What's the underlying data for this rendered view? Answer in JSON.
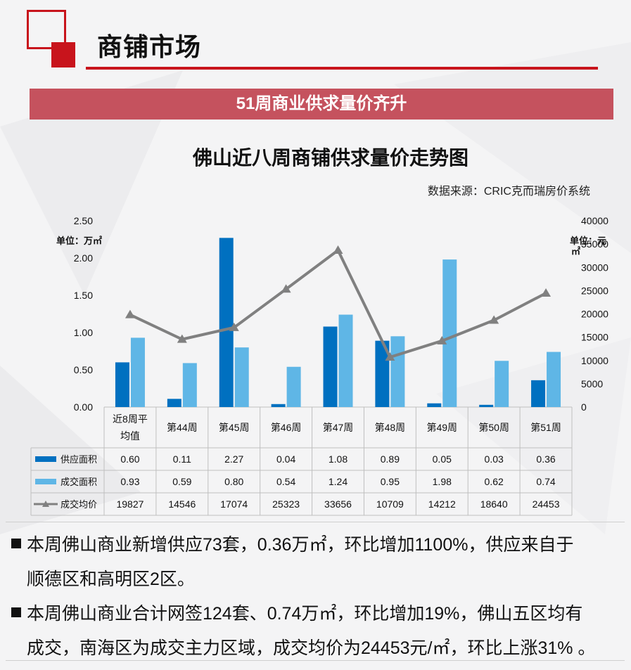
{
  "header": {
    "title": "商铺市场"
  },
  "banner": {
    "text": "51周商业供求量价齐升"
  },
  "source": "数据来源：CRIC克而瑞房价系统",
  "units": {
    "left": "单位：万㎡",
    "right_line1": "单位：元",
    "right_line2": "㎡"
  },
  "colors": {
    "accent": "#c8141c",
    "banner": "#c5525e",
    "supply": "#0070c0",
    "deal": "#5fb6e6",
    "price": "#808080"
  },
  "chart_data": {
    "type": "bar",
    "title": "佛山近八周商铺供求量价走势图",
    "categories": [
      "近8周平均值",
      "第44周",
      "第45周",
      "第46周",
      "第47周",
      "第48周",
      "第49周",
      "第50周",
      "第51周"
    ],
    "category_lines": [
      [
        "近8周平",
        "均值"
      ],
      [
        "第44周"
      ],
      [
        "第45周"
      ],
      [
        "第46周"
      ],
      [
        "第47周"
      ],
      [
        "第48周"
      ],
      [
        "第49周"
      ],
      [
        "第50周"
      ],
      [
        "第51周"
      ]
    ],
    "y_left": {
      "min": 0,
      "max": 2.5,
      "step": 0.5,
      "tick_labels": [
        "0.00",
        "0.50",
        "1.00",
        "1.50",
        "2.00",
        "2.50"
      ]
    },
    "y_right": {
      "min": 0,
      "max": 40000,
      "step": 5000,
      "tick_labels": [
        "0",
        "5000",
        "10000",
        "15000",
        "20000",
        "25000",
        "30000",
        "35000",
        "40000"
      ]
    },
    "series": [
      {
        "name": "供应面积",
        "kind": "bar",
        "axis": "left",
        "color": "#0070c0",
        "values": [
          0.6,
          0.11,
          2.27,
          0.04,
          1.08,
          0.89,
          0.05,
          0.03,
          0.36
        ],
        "labels": [
          "0.60",
          "0.11",
          "2.27",
          "0.04",
          "1.08",
          "0.89",
          "0.05",
          "0.03",
          "0.36"
        ]
      },
      {
        "name": "成交面积",
        "kind": "bar",
        "axis": "left",
        "color": "#5fb6e6",
        "values": [
          0.93,
          0.59,
          0.8,
          0.54,
          1.24,
          0.95,
          1.98,
          0.62,
          0.74
        ],
        "labels": [
          "0.93",
          "0.59",
          "0.80",
          "0.54",
          "1.24",
          "0.95",
          "1.98",
          "0.62",
          "0.74"
        ]
      },
      {
        "name": "成交均价",
        "kind": "line",
        "axis": "right",
        "color": "#808080",
        "values": [
          19827,
          14546,
          17074,
          25323,
          33656,
          10709,
          14212,
          18640,
          24453
        ],
        "labels": [
          "19827",
          "14546",
          "17074",
          "25323",
          "33656",
          "10709",
          "14212",
          "18640",
          "24453"
        ]
      }
    ],
    "legend": "data-table"
  },
  "bullets": [
    {
      "lines": [
        "本周佛山商业新增供应73套，0.36万㎡，环比增加1100%，供应来自于",
        "顺德区和高明区2区。"
      ]
    },
    {
      "lines": [
        "本周佛山商业合计网签124套、0.74万㎡，环比增加19%，佛山五区均有",
        "成交，南海区为成交主力区域，成交均价为24453元/㎡，环比上涨31% 。"
      ]
    }
  ]
}
